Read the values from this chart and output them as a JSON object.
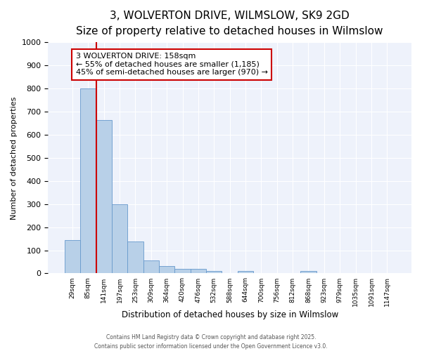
{
  "title_line1": "3, WOLVERTON DRIVE, WILMSLOW, SK9 2GD",
  "title_line2": "Size of property relative to detached houses in Wilmslow",
  "xlabel": "Distribution of detached houses by size in Wilmslow",
  "ylabel": "Number of detached properties",
  "categories": [
    "29sqm",
    "85sqm",
    "141sqm",
    "197sqm",
    "253sqm",
    "309sqm",
    "364sqm",
    "420sqm",
    "476sqm",
    "532sqm",
    "588sqm",
    "644sqm",
    "700sqm",
    "756sqm",
    "812sqm",
    "868sqm",
    "923sqm",
    "979sqm",
    "1035sqm",
    "1091sqm",
    "1147sqm"
  ],
  "values": [
    145,
    800,
    665,
    300,
    138,
    55,
    33,
    20,
    20,
    10,
    0,
    10,
    0,
    0,
    0,
    10,
    0,
    0,
    0,
    0,
    0
  ],
  "bar_color": "#b8d0e8",
  "bar_edge_color": "#6699cc",
  "red_line_color": "#cc0000",
  "red_line_index": 2,
  "ylim": [
    0,
    1000
  ],
  "yticks": [
    0,
    100,
    200,
    300,
    400,
    500,
    600,
    700,
    800,
    900,
    1000
  ],
  "annotation_line1": "3 WOLVERTON DRIVE: 158sqm",
  "annotation_line2": "← 55% of detached houses are smaller (1,185)",
  "annotation_line3": "45% of semi-detached houses are larger (970) →",
  "annotation_box_color": "#cc0000",
  "background_color": "#eef2fb",
  "grid_color": "#ffffff",
  "title_fontsize": 11,
  "subtitle_fontsize": 9,
  "footer_line1": "Contains HM Land Registry data © Crown copyright and database right 2025.",
  "footer_line2": "Contains public sector information licensed under the Open Government Licence v3.0."
}
